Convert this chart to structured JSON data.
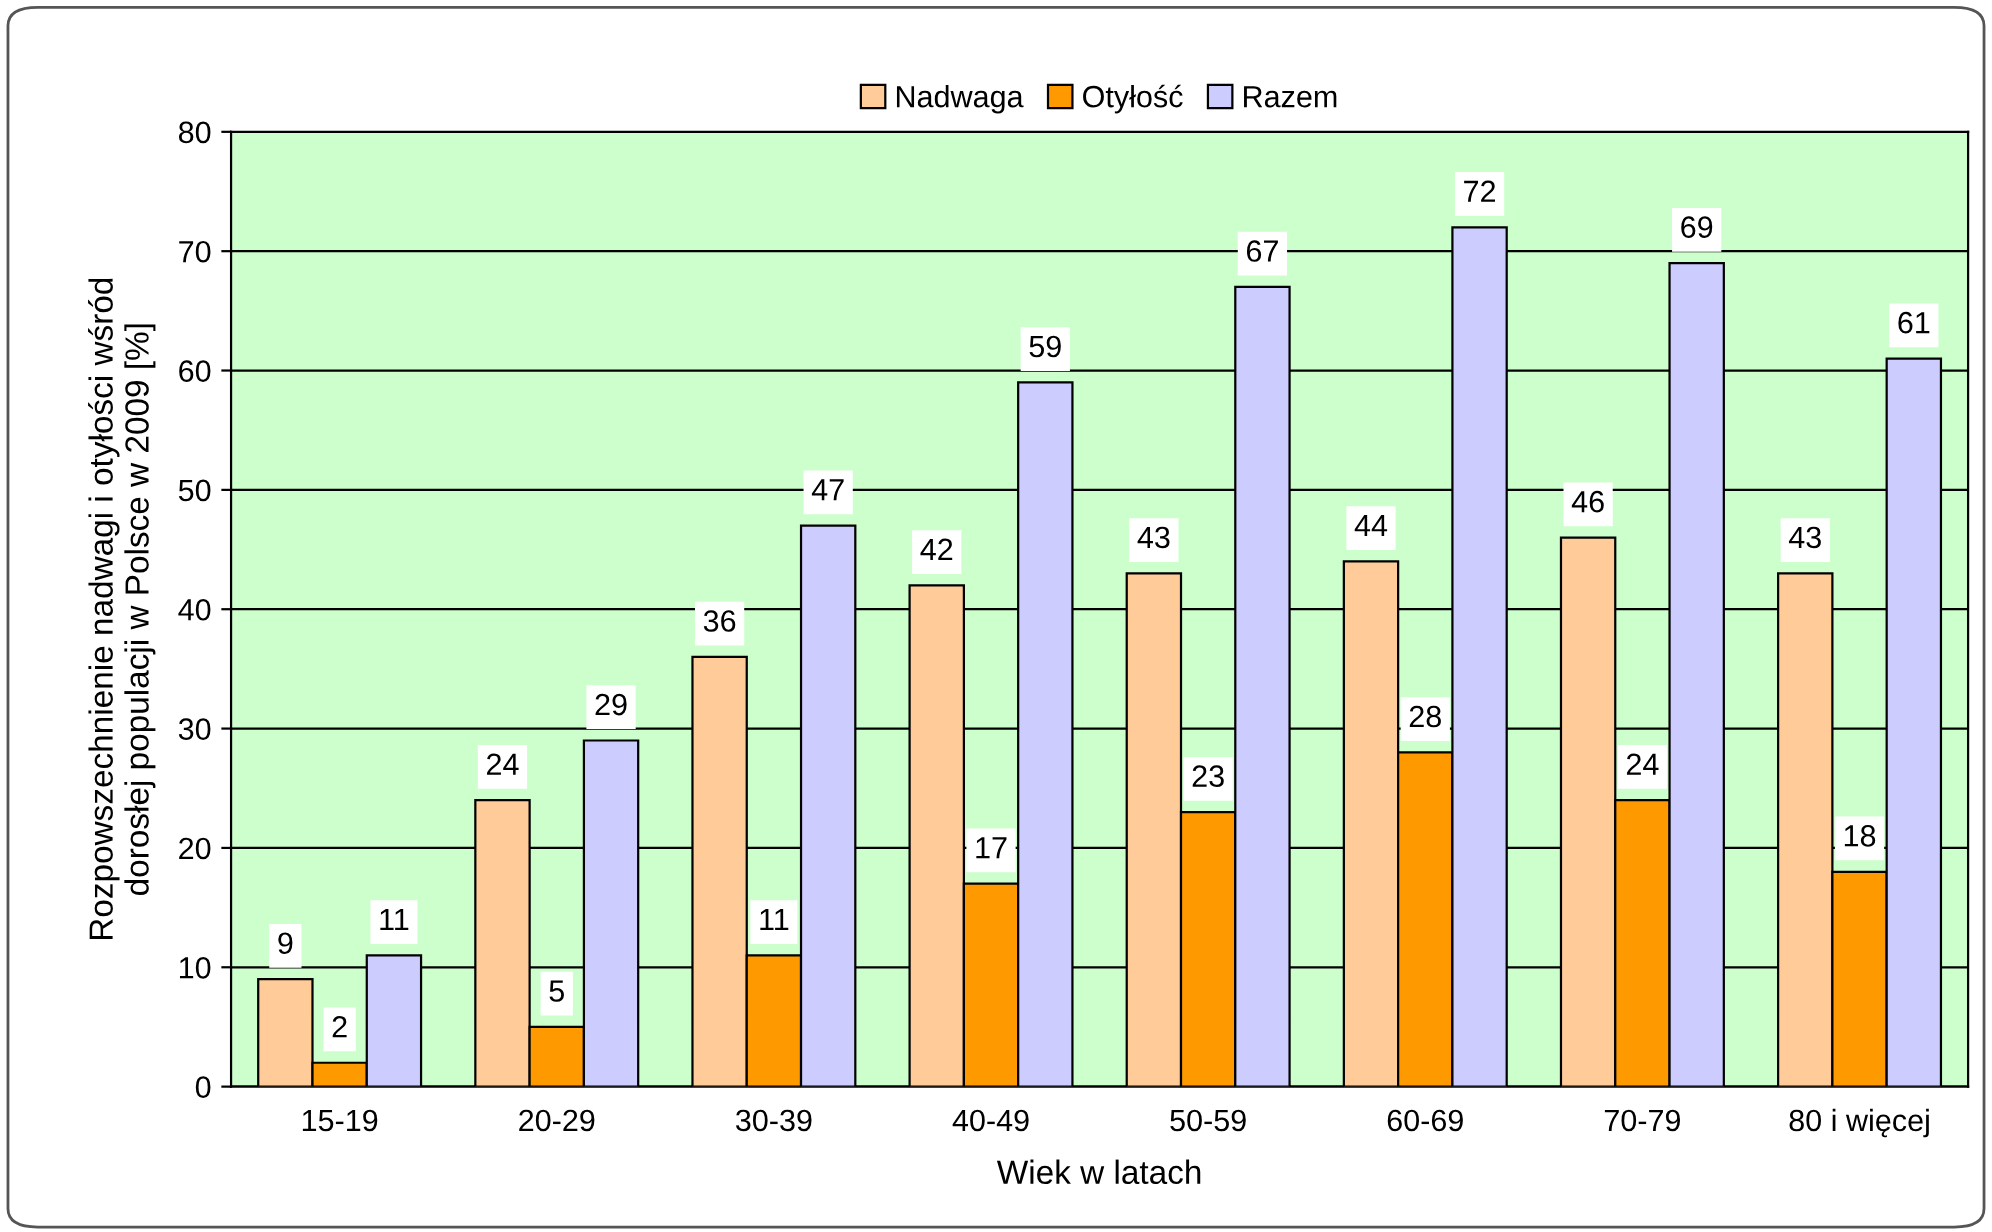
{
  "chart_data": {
    "type": "bar",
    "xlabel": "Wiek w latach",
    "ylabel": "Rozpowszechnienie nadwagi i otyłości wśród\ndorosłej populacji w Polsce w 2009 [%]",
    "categories": [
      "15-19",
      "20-29",
      "30-39",
      "40-49",
      "50-59",
      "60-69",
      "70-79",
      "80 i więcej"
    ],
    "series": [
      {
        "name": "Nadwaga",
        "color": "#ffcc99",
        "values": [
          9,
          24,
          36,
          42,
          43,
          44,
          46,
          43
        ]
      },
      {
        "name": "Otyłość",
        "color": "#ff9900",
        "values": [
          2,
          5,
          11,
          17,
          23,
          28,
          24,
          18
        ]
      },
      {
        "name": "Razem",
        "color": "#ccccff",
        "values": [
          11,
          29,
          47,
          59,
          67,
          72,
          69,
          61
        ]
      }
    ],
    "ylim": [
      0,
      80
    ],
    "yticks": [
      0,
      10,
      20,
      30,
      40,
      50,
      60,
      70,
      80
    ],
    "grid": "y",
    "legend": "top",
    "data_labels": true
  }
}
